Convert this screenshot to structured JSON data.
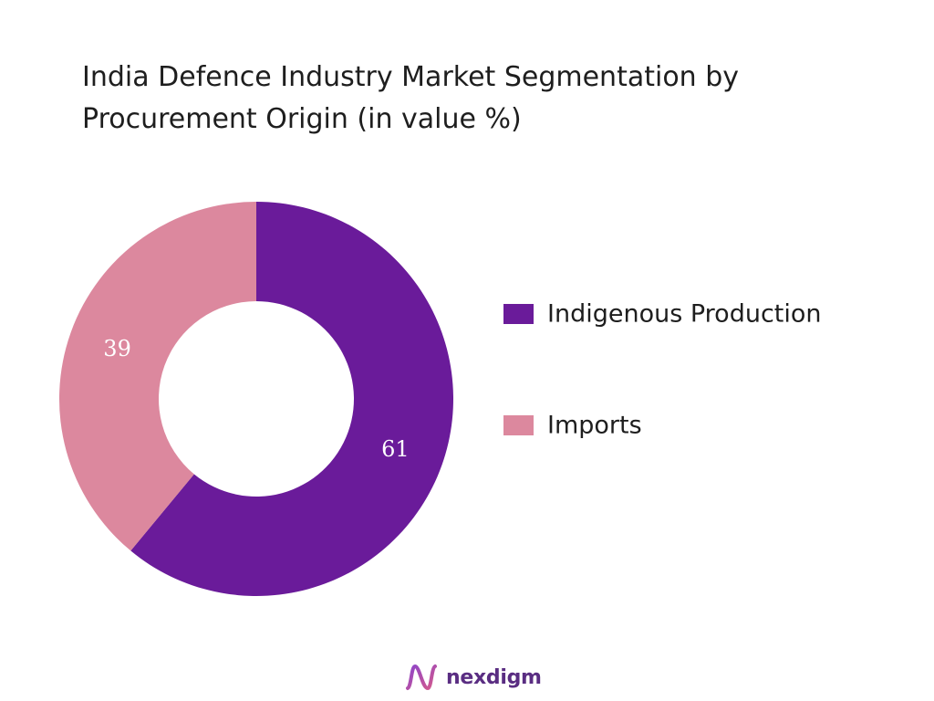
{
  "chart_data": {
    "type": "pie",
    "title": "India Defence Industry Market Segmentation by Procurement Origin (in value %)",
    "categories": [
      "Indigenous Production",
      "Imports"
    ],
    "values": [
      61,
      39
    ],
    "colors": [
      "#6a1b9a",
      "#dc889e"
    ],
    "donut": true,
    "legend_position": "right"
  },
  "brand": {
    "name": "nexdigm",
    "icon": "nexdigm-logo-icon"
  }
}
